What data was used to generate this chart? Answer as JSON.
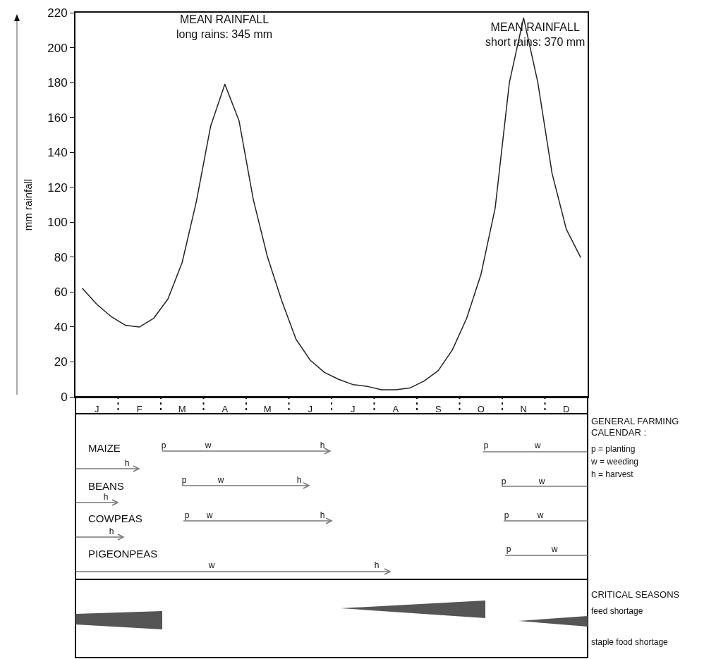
{
  "chart_data": {
    "type": "line",
    "ylabel": "mm rainfall",
    "categories": [
      null,
      "J",
      null,
      null,
      "F",
      null,
      null,
      "M",
      null,
      null,
      "A",
      null,
      null,
      "M",
      null,
      null,
      "J",
      null,
      null,
      "J",
      null,
      null,
      "A",
      null,
      null,
      "S",
      null,
      null,
      "O",
      null,
      null,
      "N",
      null,
      null,
      "D",
      null
    ],
    "series": [
      {
        "color": "#222222",
        "values": [
          62,
          53,
          46,
          41,
          40,
          45,
          56,
          77,
          112,
          155,
          179,
          158,
          113,
          80,
          55,
          33,
          21,
          14,
          10,
          7,
          6,
          4,
          4,
          5,
          9,
          15,
          27,
          45,
          70,
          108,
          180,
          217,
          180,
          128,
          96,
          80
        ]
      }
    ],
    "ylim": [
      0,
      220
    ],
    "yticks": [
      0,
      20,
      40,
      60,
      80,
      100,
      120,
      140,
      160,
      180,
      200,
      220
    ],
    "grid": false,
    "marker": "none",
    "line_style": "solid",
    "annotations": [
      "MEAN RAINFALL\nlong rains: 345 mm",
      "MEAN RAINFALL\nshort rains: 370 mm",
      "GENERAL FARMING\nCALENDAR :",
      "p = planting",
      "w = weeding",
      "h = harvest",
      "CRITICAL SEASONS",
      "feed shortage",
      "staple food shortage",
      "MAIZE",
      "BEANS",
      "COWPEAS",
      "PIGEONPEAS",
      "p",
      "w",
      "h",
      "h",
      "p",
      "w",
      "p",
      "w",
      "h",
      "h",
      "p",
      "w",
      "p",
      "w",
      "h",
      "h",
      "p",
      "w",
      "p",
      "w",
      "w",
      "h"
    ]
  }
}
